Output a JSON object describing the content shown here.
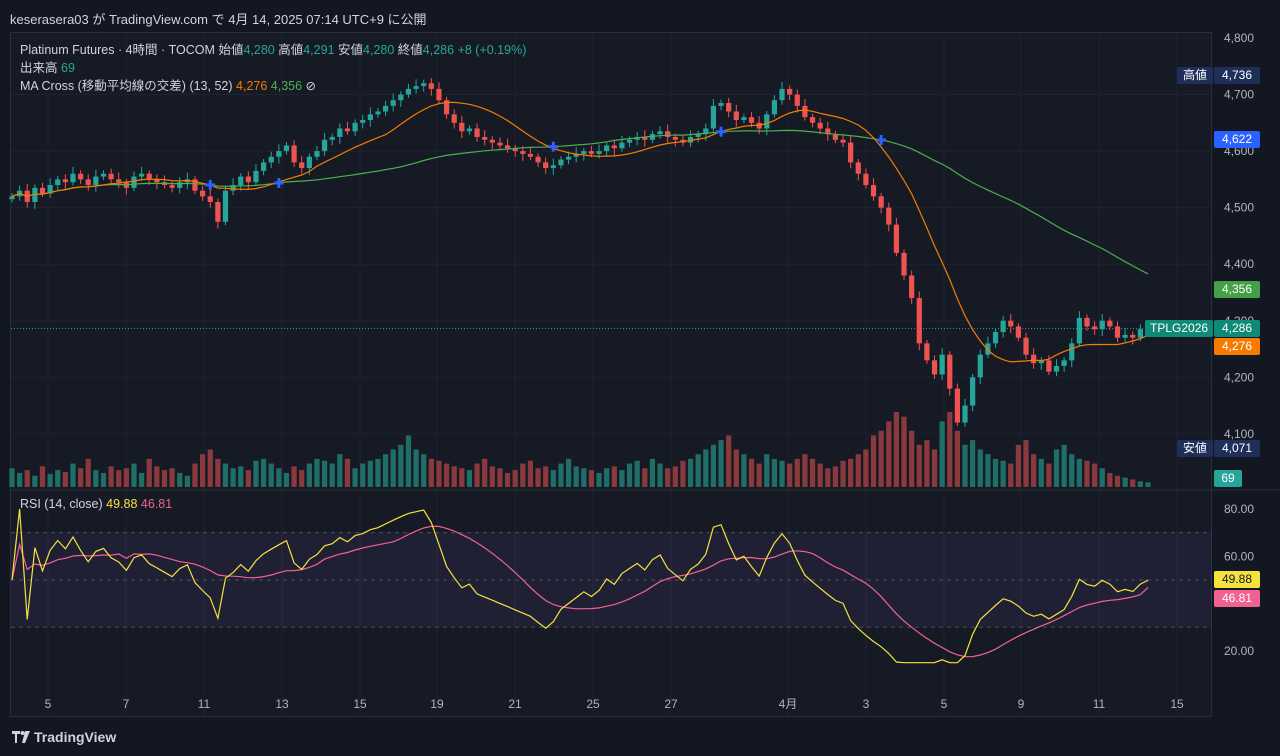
{
  "header": {
    "published": "keserasera03 が TradingView.com で 4月 14, 2025 07:14 UTC+9 に公開"
  },
  "legend": {
    "symbol": "Platinum Futures · 4時間 · TOCOM",
    "open_label": "始値",
    "open": "4,280",
    "high_label": "高値",
    "high": "4,291",
    "low_label": "安値",
    "low": "4,280",
    "close_label": "終値",
    "close": "4,286",
    "change": "+8 (+0.19%)",
    "volume_label": "出来高",
    "volume": "69",
    "ma_label": "MA Cross (移動平均線の交差) (13, 52)",
    "ma_fast": "4,276",
    "ma_slow": "4,356",
    "ma_icon": "⊘",
    "rsi_label": "RSI (14, close)",
    "rsi": "49.88",
    "rsi_ma": "46.81"
  },
  "price_labels": {
    "high_tag": "高値",
    "high": "4,736",
    "low_tag": "安値",
    "low": "4,071",
    "cross": "4,622",
    "ma_slow": "4,356",
    "ticker": "TPLG2026",
    "last": "4,286",
    "ma_fast": "4,276",
    "volume": "69",
    "rsi": "49.88",
    "rsi_ma": "46.81"
  },
  "footer": {
    "brand": "TradingView"
  },
  "colors": {
    "up": "#26a69a",
    "down": "#ef5350",
    "ma_fast": "#f57c00",
    "ma_slow": "#4caf50",
    "rsi": "#f5e23f",
    "rsi_ma": "#f06292",
    "cross": "#2962ff"
  },
  "chart_data": [
    {
      "type": "candlestick",
      "title": "Platinum Futures · 4時間 · TOCOM",
      "ylim": [
        4050,
        4820
      ],
      "y_ticks": [
        "4,100",
        "4,200",
        "4,300",
        "4,400",
        "4,500",
        "4,600",
        "4,700",
        "4,800"
      ],
      "x_ticks": [
        "5",
        "7",
        "11",
        "13",
        "15",
        "19",
        "21",
        "25",
        "27",
        "4月",
        "3",
        "5",
        "9",
        "11",
        "15"
      ],
      "x_ticks_note": "dates, Mar 5 2025 – Apr 15 2025",
      "ohlc_close": [
        4520,
        4530,
        4510,
        4535,
        4525,
        4540,
        4550,
        4545,
        4560,
        4550,
        4540,
        4555,
        4560,
        4550,
        4545,
        4535,
        4555,
        4560,
        4550,
        4545,
        4540,
        4535,
        4545,
        4550,
        4530,
        4520,
        4510,
        4475,
        4530,
        4540,
        4555,
        4545,
        4565,
        4580,
        4590,
        4600,
        4610,
        4580,
        4570,
        4590,
        4600,
        4620,
        4625,
        4640,
        4635,
        4650,
        4655,
        4665,
        4670,
        4680,
        4690,
        4700,
        4710,
        4715,
        4720,
        4710,
        4690,
        4665,
        4650,
        4635,
        4640,
        4625,
        4620,
        4615,
        4610,
        4605,
        4600,
        4595,
        4590,
        4580,
        4570,
        4575,
        4585,
        4590,
        4595,
        4600,
        4595,
        4600,
        4610,
        4605,
        4615,
        4620,
        4625,
        4620,
        4630,
        4635,
        4625,
        4620,
        4615,
        4625,
        4630,
        4640,
        4680,
        4685,
        4670,
        4655,
        4660,
        4650,
        4640,
        4665,
        4690,
        4710,
        4700,
        4680,
        4660,
        4650,
        4640,
        4630,
        4620,
        4615,
        4580,
        4560,
        4540,
        4520,
        4500,
        4470,
        4420,
        4380,
        4340,
        4260,
        4230,
        4205,
        4240,
        4180,
        4120,
        4150,
        4200,
        4240,
        4260,
        4280,
        4300,
        4290,
        4270,
        4240,
        4225,
        4230,
        4210,
        4220,
        4230,
        4260,
        4305,
        4290,
        4285,
        4300,
        4290,
        4270,
        4275,
        4270,
        4285,
        4286
      ],
      "volume": [
        20,
        15,
        18,
        12,
        22,
        14,
        18,
        16,
        25,
        20,
        30,
        18,
        15,
        22,
        18,
        20,
        25,
        15,
        30,
        22,
        18,
        20,
        15,
        12,
        25,
        35,
        40,
        30,
        25,
        20,
        22,
        18,
        28,
        30,
        25,
        20,
        15,
        22,
        18,
        25,
        30,
        28,
        25,
        35,
        30,
        20,
        25,
        28,
        30,
        35,
        40,
        45,
        55,
        40,
        35,
        30,
        28,
        25,
        22,
        20,
        18,
        25,
        30,
        22,
        20,
        15,
        18,
        25,
        28,
        20,
        22,
        18,
        25,
        30,
        22,
        20,
        18,
        15,
        20,
        22,
        18,
        25,
        28,
        20,
        30,
        25,
        20,
        22,
        28,
        30,
        35,
        40,
        45,
        50,
        55,
        40,
        35,
        30,
        25,
        35,
        30,
        28,
        25,
        30,
        35,
        30,
        25,
        20,
        22,
        28,
        30,
        35,
        40,
        55,
        60,
        70,
        80,
        75,
        60,
        45,
        50,
        40,
        70,
        80,
        60,
        45,
        50,
        40,
        35,
        30,
        28,
        25,
        45,
        50,
        35,
        30,
        25,
        40,
        45,
        35,
        30,
        28,
        25,
        20,
        15,
        12,
        10,
        8,
        6,
        5
      ],
      "ma_fast_series": "MA 13",
      "ma_slow_series": "MA 52",
      "ma_fast_last": 4276,
      "ma_slow_last": 4356,
      "high": 4736,
      "low": 4071,
      "last": 4286
    },
    {
      "type": "line",
      "title": "RSI (14, close)",
      "ylim": [
        10,
        90
      ],
      "y_ticks": [
        "20.00",
        "60.00",
        "80.00"
      ],
      "bands": [
        30,
        70
      ],
      "series": [
        {
          "name": "RSI",
          "last": 49.88
        },
        {
          "name": "RSI MA",
          "last": 46.81
        }
      ]
    }
  ]
}
